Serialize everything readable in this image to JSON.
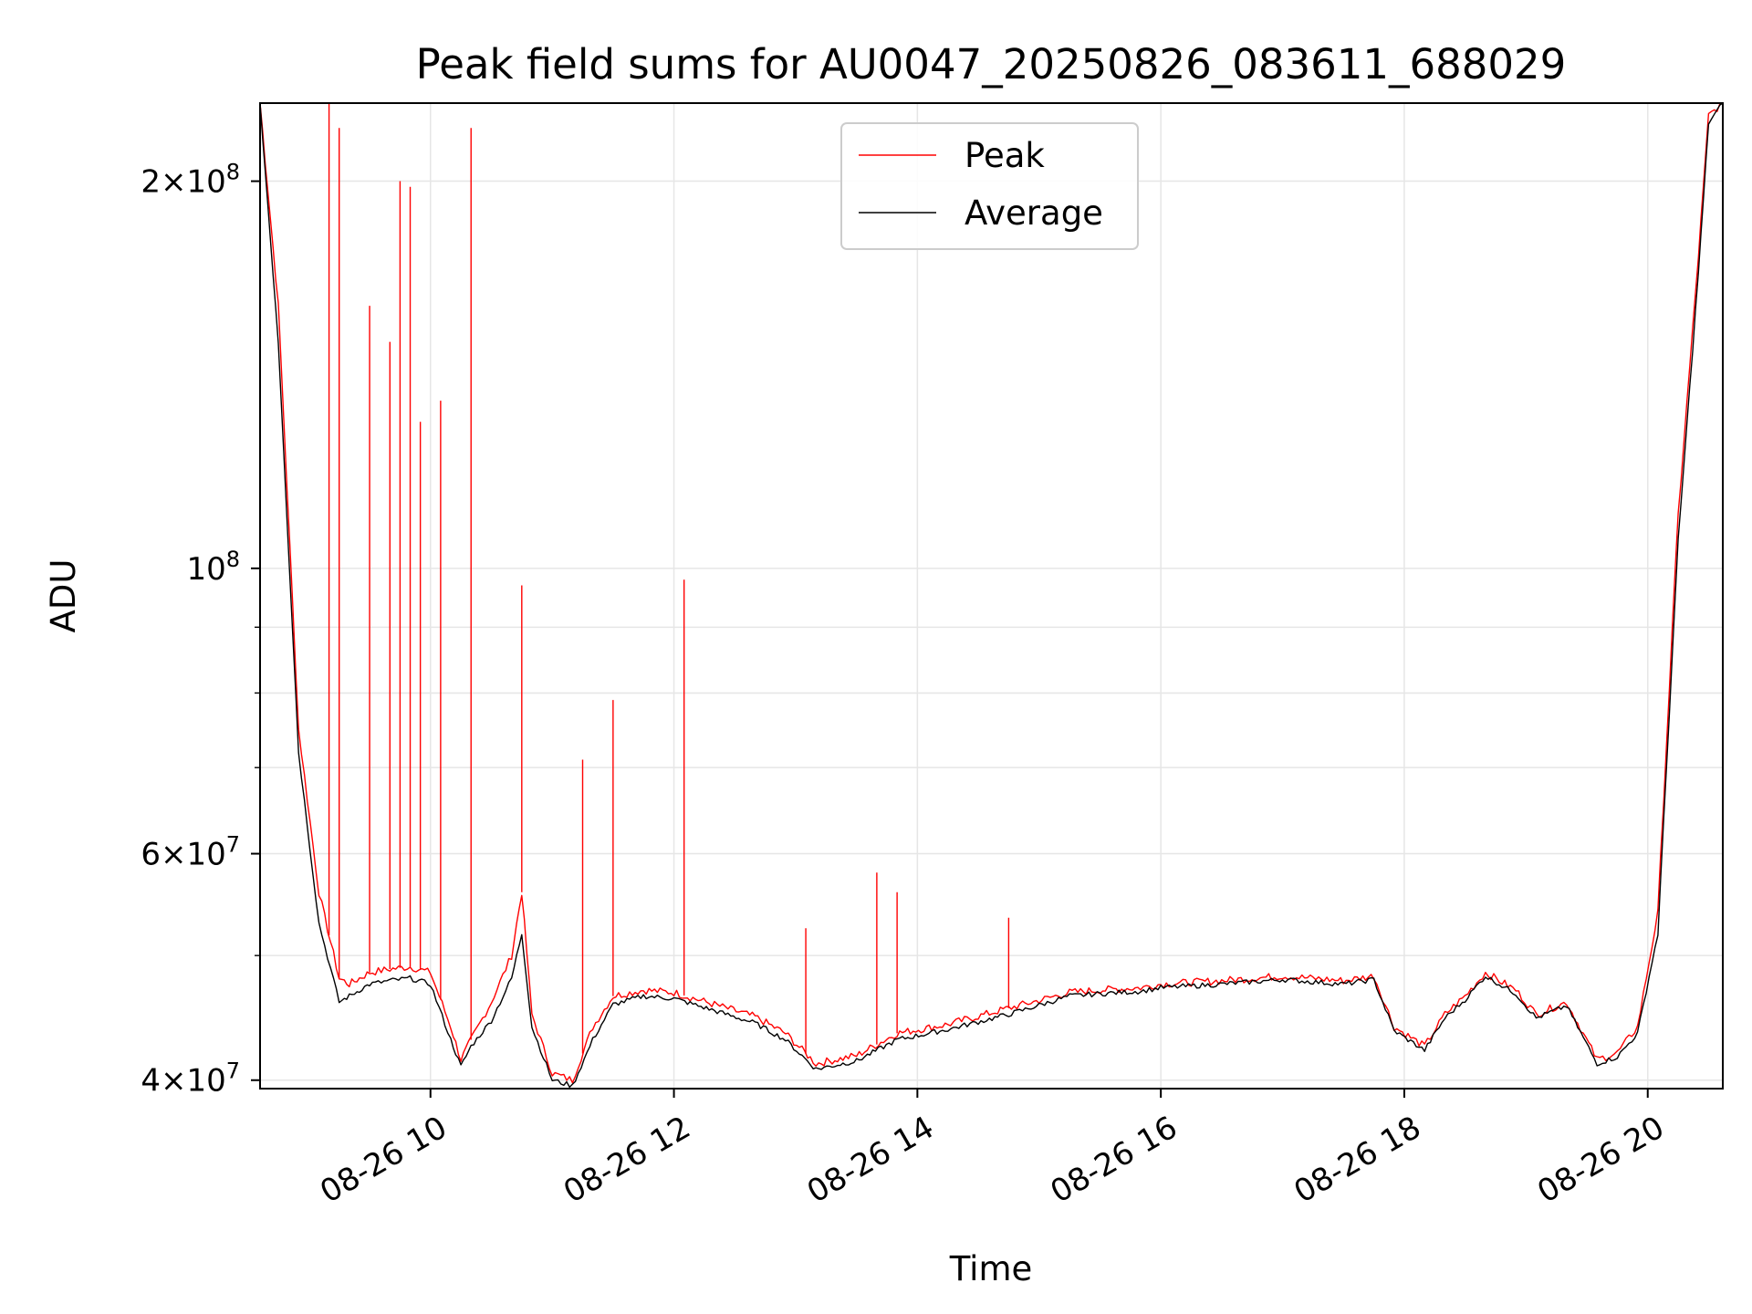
{
  "chart_data": {
    "type": "line",
    "title": "Peak field sums for AU0047_20250826_083611_688029",
    "xlabel": "Time",
    "ylabel": "ADU",
    "y_scale": "log",
    "ylim": [
      39400000,
      230000000
    ],
    "xlim": [
      "2025-08-26 08:36",
      "2025-08-26 20:37"
    ],
    "x_ticks": [
      "2025-08-26 10:00",
      "2025-08-26 12:00",
      "2025-08-26 14:00",
      "2025-08-26 16:00",
      "2025-08-26 18:00",
      "2025-08-26 20:00"
    ],
    "x_tick_labels": [
      "08-26 10",
      "08-26 12",
      "08-26 14",
      "08-26 16",
      "08-26 18",
      "08-26 20"
    ],
    "y_major_ticks": [
      {
        "value": 40000000,
        "base": "4",
        "exp": "7"
      },
      {
        "value": 60000000,
        "base": "6",
        "exp": "7"
      },
      {
        "value": 100000000,
        "base": "",
        "exp": "8"
      },
      {
        "value": 200000000,
        "base": "2",
        "exp": "8"
      }
    ],
    "y_minor_ticks": [
      50000000,
      70000000,
      80000000,
      90000000
    ],
    "grid": true,
    "legend": {
      "placement": "top-center",
      "entries": [
        "Peak",
        "Average"
      ]
    },
    "series": [
      {
        "name": "Peak",
        "color": "#ff0000",
        "x": [
          "2025-08-26 08:36",
          "2025-08-26 08:45",
          "2025-08-26 08:55",
          "2025-08-26 09:05",
          "2025-08-26 09:15",
          "2025-08-26 09:20",
          "2025-08-26 09:25",
          "2025-08-26 09:30",
          "2025-08-26 09:40",
          "2025-08-26 09:50",
          "2025-08-26 10:00",
          "2025-08-26 10:10",
          "2025-08-26 10:15",
          "2025-08-26 10:20",
          "2025-08-26 10:30",
          "2025-08-26 10:40",
          "2025-08-26 10:45",
          "2025-08-26 10:50",
          "2025-08-26 11:00",
          "2025-08-26 11:10",
          "2025-08-26 11:20",
          "2025-08-26 11:30",
          "2025-08-26 11:45",
          "2025-08-26 12:00",
          "2025-08-26 12:20",
          "2025-08-26 12:40",
          "2025-08-26 12:55",
          "2025-08-26 13:10",
          "2025-08-26 13:30",
          "2025-08-26 13:50",
          "2025-08-26 14:15",
          "2025-08-26 14:45",
          "2025-08-26 15:15",
          "2025-08-26 15:30",
          "2025-08-26 15:50",
          "2025-08-26 16:00",
          "2025-08-26 16:30",
          "2025-08-26 17:00",
          "2025-08-26 17:15",
          "2025-08-26 17:30",
          "2025-08-26 17:45",
          "2025-08-26 17:55",
          "2025-08-26 18:10",
          "2025-08-26 18:20",
          "2025-08-26 18:30",
          "2025-08-26 18:40",
          "2025-08-26 18:55",
          "2025-08-26 19:05",
          "2025-08-26 19:20",
          "2025-08-26 19:35",
          "2025-08-26 19:45",
          "2025-08-26 19:55",
          "2025-08-26 20:05",
          "2025-08-26 20:15",
          "2025-08-26 20:25",
          "2025-08-26 20:30",
          "2025-08-26 20:37"
        ],
        "y": [
          230000000,
          160000000,
          75000000,
          56000000,
          48000000,
          47500000,
          48000000,
          48500000,
          48800000,
          49000000,
          48500000,
          44000000,
          41500000,
          43000000,
          46000000,
          50000000,
          56000000,
          45000000,
          40500000,
          40000000,
          44000000,
          46500000,
          47000000,
          46800000,
          45800000,
          44800000,
          43500000,
          41200000,
          41800000,
          43500000,
          44200000,
          45500000,
          46800000,
          47000000,
          47200000,
          47500000,
          47800000,
          48200000,
          48000000,
          47800000,
          48200000,
          44000000,
          42500000,
          45000000,
          46500000,
          48500000,
          47000000,
          45000000,
          46000000,
          41500000,
          42000000,
          44000000,
          54000000,
          110000000,
          175000000,
          225000000,
          230000000
        ],
        "spikes": [
          {
            "x": "2025-08-26 09:10",
            "y": 230000000
          },
          {
            "x": "2025-08-26 09:15",
            "y": 220000000
          },
          {
            "x": "2025-08-26 09:30",
            "y": 160000000
          },
          {
            "x": "2025-08-26 09:40",
            "y": 150000000
          },
          {
            "x": "2025-08-26 09:45",
            "y": 200000000
          },
          {
            "x": "2025-08-26 09:50",
            "y": 198000000
          },
          {
            "x": "2025-08-26 09:55",
            "y": 130000000
          },
          {
            "x": "2025-08-26 10:05",
            "y": 135000000
          },
          {
            "x": "2025-08-26 10:20",
            "y": 220000000
          },
          {
            "x": "2025-08-26 10:45",
            "y": 97000000
          },
          {
            "x": "2025-08-26 11:15",
            "y": 71000000
          },
          {
            "x": "2025-08-26 11:30",
            "y": 79000000
          },
          {
            "x": "2025-08-26 12:05",
            "y": 98000000
          },
          {
            "x": "2025-08-26 13:05",
            "y": 52500000
          },
          {
            "x": "2025-08-26 13:40",
            "y": 58000000
          },
          {
            "x": "2025-08-26 13:50",
            "y": 56000000
          },
          {
            "x": "2025-08-26 14:45",
            "y": 53500000
          }
        ]
      },
      {
        "name": "Average",
        "color": "#000000",
        "x": [
          "2025-08-26 08:36",
          "2025-08-26 08:45",
          "2025-08-26 08:55",
          "2025-08-26 09:05",
          "2025-08-26 09:15",
          "2025-08-26 09:20",
          "2025-08-26 09:25",
          "2025-08-26 09:30",
          "2025-08-26 09:40",
          "2025-08-26 09:50",
          "2025-08-26 10:00",
          "2025-08-26 10:10",
          "2025-08-26 10:15",
          "2025-08-26 10:20",
          "2025-08-26 10:30",
          "2025-08-26 10:40",
          "2025-08-26 10:45",
          "2025-08-26 10:50",
          "2025-08-26 11:00",
          "2025-08-26 11:10",
          "2025-08-26 11:20",
          "2025-08-26 11:30",
          "2025-08-26 11:45",
          "2025-08-26 12:00",
          "2025-08-26 12:20",
          "2025-08-26 12:40",
          "2025-08-26 12:55",
          "2025-08-26 13:10",
          "2025-08-26 13:30",
          "2025-08-26 13:50",
          "2025-08-26 14:15",
          "2025-08-26 14:45",
          "2025-08-26 15:15",
          "2025-08-26 15:30",
          "2025-08-26 15:50",
          "2025-08-26 16:00",
          "2025-08-26 16:30",
          "2025-08-26 17:00",
          "2025-08-26 17:15",
          "2025-08-26 17:30",
          "2025-08-26 17:45",
          "2025-08-26 17:55",
          "2025-08-26 18:10",
          "2025-08-26 18:20",
          "2025-08-26 18:30",
          "2025-08-26 18:40",
          "2025-08-26 18:55",
          "2025-08-26 19:05",
          "2025-08-26 19:20",
          "2025-08-26 19:35",
          "2025-08-26 19:45",
          "2025-08-26 19:55",
          "2025-08-26 20:05",
          "2025-08-26 20:15",
          "2025-08-26 20:25",
          "2025-08-26 20:30",
          "2025-08-26 20:37"
        ],
        "y": [
          230000000,
          150000000,
          72000000,
          53000000,
          46000000,
          46500000,
          47000000,
          47500000,
          47800000,
          48000000,
          47500000,
          43000000,
          41000000,
          42500000,
          44500000,
          48000000,
          52000000,
          44000000,
          40000000,
          39600000,
          43000000,
          45800000,
          46500000,
          46300000,
          45300000,
          44300000,
          43000000,
          40800000,
          41400000,
          43000000,
          43800000,
          45000000,
          46500000,
          46700000,
          46900000,
          47200000,
          47500000,
          47900000,
          47700000,
          47500000,
          47900000,
          43700000,
          42200000,
          44700000,
          46200000,
          48200000,
          46700000,
          44700000,
          45700000,
          41200000,
          41700000,
          43500000,
          52000000,
          105000000,
          170000000,
          222000000,
          230000000
        ]
      }
    ]
  }
}
